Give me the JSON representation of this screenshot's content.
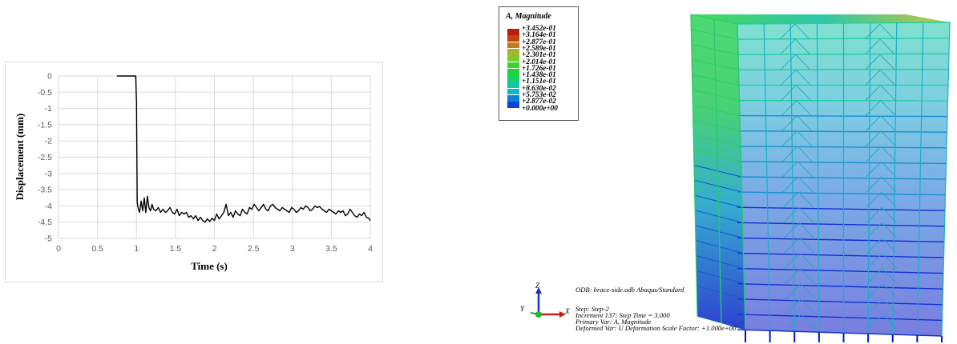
{
  "chart_data": {
    "type": "line",
    "title": "",
    "xlabel": "Time (s)",
    "ylabel": "Displacement (mm)",
    "xlim": [
      0,
      4
    ],
    "ylim": [
      -5,
      0
    ],
    "xticks": [
      "0",
      "0.5",
      "1",
      "1.5",
      "2",
      "2.5",
      "3",
      "3.5",
      "4"
    ],
    "yticks": [
      "0",
      "-0.5",
      "-1",
      "-1.5",
      "-2",
      "-2.5",
      "-3",
      "-3.5",
      "-4",
      "-4.5",
      "-5"
    ],
    "grid": true,
    "series": [
      {
        "color": "#000000",
        "x": [
          0.75,
          0.98,
          0.99,
          1.0,
          1.01,
          1.02,
          1.04,
          1.06,
          1.08,
          1.1,
          1.12,
          1.14,
          1.16,
          1.18,
          1.2,
          1.22,
          1.25,
          1.28,
          1.31,
          1.34,
          1.37,
          1.4,
          1.43,
          1.46,
          1.49,
          1.52,
          1.55,
          1.58,
          1.61,
          1.64,
          1.67,
          1.7,
          1.73,
          1.76,
          1.79,
          1.82,
          1.85,
          1.88,
          1.91,
          1.94,
          1.97,
          2.0,
          2.03,
          2.06,
          2.09,
          2.12,
          2.15,
          2.18,
          2.21,
          2.24,
          2.27,
          2.3,
          2.33,
          2.36,
          2.39,
          2.42,
          2.45,
          2.48,
          2.51,
          2.54,
          2.57,
          2.6,
          2.63,
          2.66,
          2.69,
          2.72,
          2.75,
          2.78,
          2.81,
          2.84,
          2.87,
          2.9,
          2.93,
          2.96,
          2.99,
          3.02,
          3.05,
          3.08,
          3.11,
          3.14,
          3.17,
          3.2,
          3.23,
          3.26,
          3.29,
          3.32,
          3.35,
          3.38,
          3.41,
          3.44,
          3.47,
          3.5,
          3.53,
          3.56,
          3.59,
          3.62,
          3.65,
          3.68,
          3.71,
          3.74,
          3.77,
          3.8,
          3.83,
          3.86,
          3.89,
          3.92,
          3.95,
          3.98,
          4.0
        ],
        "y": [
          0,
          0,
          0,
          -0.8,
          -3.9,
          -4.05,
          -4.2,
          -3.85,
          -4.15,
          -3.75,
          -4.2,
          -3.7,
          -4.05,
          -4.15,
          -3.95,
          -4.1,
          -4.15,
          -4.05,
          -4.2,
          -4.1,
          -4.2,
          -4.15,
          -4.05,
          -4.2,
          -4.25,
          -4.1,
          -4.3,
          -4.2,
          -4.25,
          -4.2,
          -4.35,
          -4.3,
          -4.4,
          -4.3,
          -4.45,
          -4.35,
          -4.45,
          -4.5,
          -4.4,
          -4.48,
          -4.38,
          -4.45,
          -4.25,
          -4.4,
          -4.3,
          -4.2,
          -3.95,
          -4.3,
          -4.2,
          -4.35,
          -4.15,
          -4.25,
          -4.3,
          -4.1,
          -4.2,
          -4.25,
          -4.05,
          -4.1,
          -3.95,
          -4.05,
          -4.15,
          -4.05,
          -3.95,
          -4.1,
          -4.15,
          -4.0,
          -3.95,
          -4.05,
          -4.1,
          -4.15,
          -4.05,
          -4.1,
          -4.15,
          -4.2,
          -4.05,
          -4.1,
          -4.2,
          -4.15,
          -4.05,
          -4.1,
          -4.0,
          -4.05,
          -4.15,
          -4.1,
          -4.0,
          -4.05,
          -4.02,
          -4.1,
          -4.15,
          -4.2,
          -4.1,
          -4.15,
          -4.2,
          -4.25,
          -4.15,
          -4.2,
          -4.15,
          -4.3,
          -4.25,
          -4.1,
          -4.2,
          -4.3,
          -4.35,
          -4.25,
          -4.3,
          -4.2,
          -4.35,
          -4.38,
          -4.45
        ]
      }
    ]
  },
  "contour_legend": {
    "title": "A, Magnitude",
    "levels": [
      {
        "label": "+3.452e-01",
        "color": "#b51f0c"
      },
      {
        "label": "+3.164e-01",
        "color": "#c8420c"
      },
      {
        "label": "+2.877e-01",
        "color": "#c27a1a"
      },
      {
        "label": "+2.589e-01",
        "color": "#a8b52a"
      },
      {
        "label": "+2.301e-01",
        "color": "#7dca2c"
      },
      {
        "label": "+2.014e-01",
        "color": "#3fd02c"
      },
      {
        "label": "+1.726e-01",
        "color": "#22d336"
      },
      {
        "label": "+1.438e-01",
        "color": "#16d065"
      },
      {
        "label": "+1.151e-01",
        "color": "#11c99e"
      },
      {
        "label": "+8.630e-02",
        "color": "#10b5c8"
      },
      {
        "label": "+5.753e-02",
        "color": "#0f7fd8"
      },
      {
        "label": "+2.877e-02",
        "color": "#0c43d6"
      },
      {
        "label": "+0.000e+00",
        "color": "#0a10c8"
      }
    ]
  },
  "axis_triad": {
    "z": "Z",
    "y": "Y",
    "x": "X"
  },
  "info": {
    "odb_line": "ODB: brace-side.odb    Abaqus/Standard",
    "step": "Step: Step-2",
    "increment": "Increment    137: Step Time =    3.000",
    "primary_var": "Primary Var: A, Magnitude",
    "deformed_var": "Deformed Var: U   Deformation Scale Factor: +1.000e+00"
  }
}
